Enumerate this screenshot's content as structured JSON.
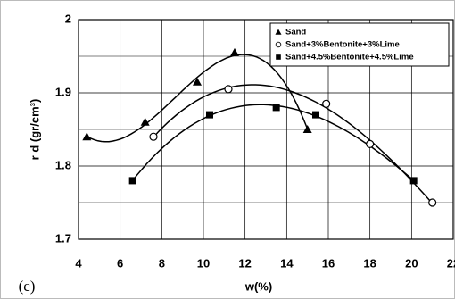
{
  "chart_data": {
    "type": "scatter",
    "xlabel": "w(%)",
    "ylabel": "r d (gr/cm³)",
    "annotation": "(c)",
    "xlim": [
      4,
      22
    ],
    "xticks": [
      4,
      6,
      8,
      10,
      12,
      14,
      16,
      18,
      20,
      22
    ],
    "ylim": [
      1.7,
      2
    ],
    "yticks": [
      1.7,
      1.8,
      1.9,
      2
    ],
    "grid": true,
    "legend": "upper right",
    "series": [
      {
        "name": "Sand",
        "color": "#000000",
        "marker": "triangle",
        "x": [
          4.4,
          7.2,
          9.7,
          11.5,
          15.0
        ],
        "values": [
          1.84,
          1.86,
          1.915,
          1.955,
          1.85
        ]
      },
      {
        "name": "Sand+3%Bentonite+3%Lime",
        "color": "#000000",
        "marker": "open-circle",
        "x": [
          7.6,
          11.2,
          15.9,
          18.0,
          21.0
        ],
        "values": [
          1.84,
          1.905,
          1.885,
          1.83,
          1.75
        ]
      },
      {
        "name": "Sand+4.5%Bentonite+4.5%Lime",
        "color": "#000000",
        "marker": "square",
        "x": [
          6.6,
          10.3,
          13.5,
          15.4,
          20.1
        ],
        "values": [
          1.78,
          1.87,
          1.88,
          1.87,
          1.78
        ]
      }
    ]
  }
}
